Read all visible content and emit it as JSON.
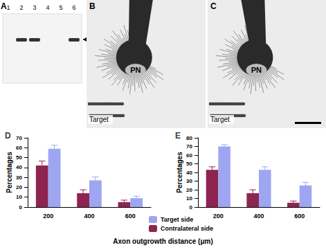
{
  "figure": {
    "panel_a": {
      "label": "A",
      "lanes": [
        "1",
        "2",
        "3",
        "4",
        "5",
        "6"
      ]
    },
    "panel_b": {
      "label": "B",
      "soma": "PN",
      "target": "Target"
    },
    "panel_c": {
      "label": "C",
      "soma": "PN",
      "target": "Target"
    },
    "x_axis_title": "Axon outgrowth distance (μm)"
  },
  "chart_data": [
    {
      "type": "bar",
      "title": "D",
      "y_label": "Percentages",
      "categories": [
        "200",
        "400",
        "600"
      ],
      "series": [
        {
          "name": "Contralateral side",
          "color": "#8e2450",
          "values": [
            42,
            14,
            5
          ],
          "errors": [
            4.5,
            3.5,
            2
          ]
        },
        {
          "name": "Target side",
          "color": "#9ea6f2",
          "values": [
            59,
            27,
            9
          ],
          "errors": [
            3.5,
            3.5,
            2
          ]
        }
      ],
      "ylim": [
        0,
        70
      ],
      "yticks": [
        0,
        10,
        20,
        30,
        40,
        50,
        60,
        70
      ],
      "grid": false,
      "legend": "bottom"
    },
    {
      "type": "bar",
      "title": "E",
      "y_label": "Percentages",
      "categories": [
        "200",
        "400",
        "600"
      ],
      "series": [
        {
          "name": "Contralateral side",
          "color": "#8e2450",
          "values": [
            43,
            16,
            5
          ],
          "errors": [
            3.5,
            4,
            2
          ]
        },
        {
          "name": "Target side",
          "color": "#9ea6f2",
          "values": [
            70,
            43,
            25
          ],
          "errors": [
            2,
            3.5,
            3.5
          ]
        }
      ],
      "ylim": [
        0,
        80
      ],
      "yticks": [
        0,
        10,
        20,
        30,
        40,
        50,
        60,
        70,
        80
      ],
      "grid": false,
      "legend": "bottom"
    }
  ]
}
